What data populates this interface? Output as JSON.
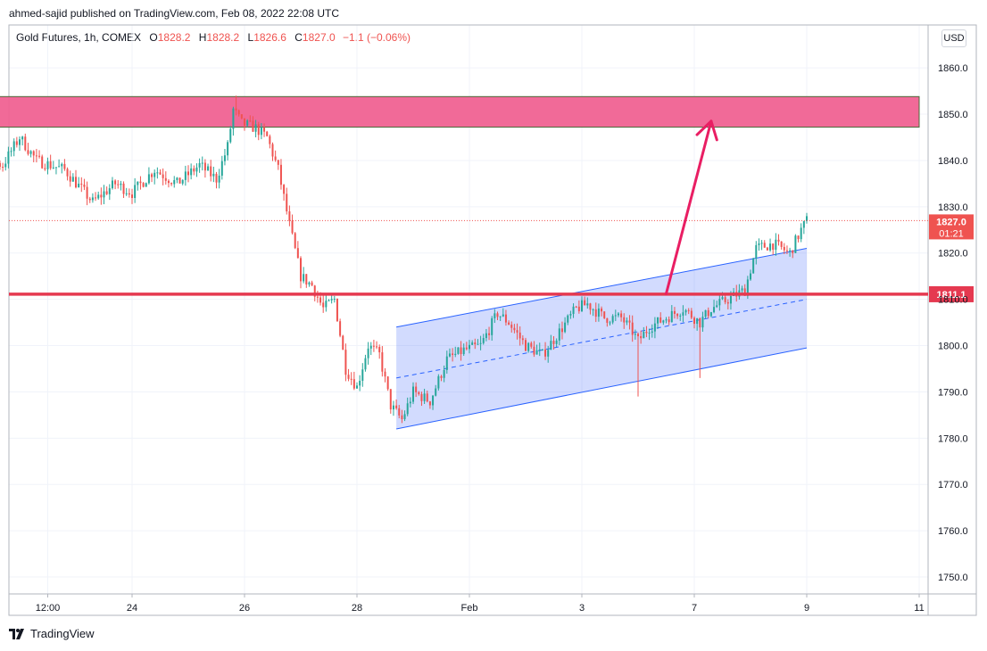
{
  "header": {
    "publisher": "ahmed-sajid published on TradingView.com, Feb 08, 2022 22:08 UTC"
  },
  "legend": {
    "symbol": "Gold Futures, 1h, COMEX",
    "o_label": "O",
    "o_value": "1828.2",
    "h_label": "H",
    "h_value": "1828.2",
    "l_label": "L",
    "l_value": "1826.6",
    "c_label": "C",
    "c_value": "1827.0",
    "change": "−1.1 (−0.06%)"
  },
  "currency_button": "USD",
  "footer": {
    "brand": "TradingView",
    "logo_icon": "tradingview-logo-icon"
  },
  "colors": {
    "up": "#26a69a",
    "down": "#ef5350",
    "zone": "#f06292",
    "support_line": "#e53950",
    "channel": "#2962ff",
    "arrow": "#e91e63"
  },
  "chart_data": {
    "type": "candlestick",
    "instrument": "Gold Futures",
    "ylim": [
      1743,
      1866
    ],
    "y_ticks": [
      1750,
      1760,
      1770,
      1780,
      1790,
      1800,
      1810,
      1820,
      1830,
      1840,
      1850,
      1860
    ],
    "x_range": [
      -3.3,
      19.5
    ],
    "x_ticks": [
      {
        "x": -1.5,
        "label": "12:00"
      },
      {
        "x": 0,
        "label": "24"
      },
      {
        "x": 2,
        "label": "26"
      },
      {
        "x": 4,
        "label": "28"
      },
      {
        "x": 6,
        "label": "Feb"
      },
      {
        "x": 8,
        "label": "3"
      },
      {
        "x": 10,
        "label": "7"
      },
      {
        "x": 12,
        "label": "9"
      },
      {
        "x": 14,
        "label": "11"
      }
    ],
    "price_path": [
      [
        -3.3,
        1843
      ],
      [
        -2.8,
        1841
      ],
      [
        -2.3,
        1839
      ],
      [
        -2.0,
        1845
      ],
      [
        -1.7,
        1840
      ],
      [
        -1.2,
        1838
      ],
      [
        -0.7,
        1831
      ],
      [
        -0.3,
        1835
      ],
      [
        0.0,
        1833
      ],
      [
        0.4,
        1838
      ],
      [
        0.8,
        1835
      ],
      [
        1.2,
        1839
      ],
      [
        1.5,
        1836
      ],
      [
        1.7,
        1843
      ],
      [
        1.8,
        1851
      ],
      [
        1.95,
        1848
      ],
      [
        2.2,
        1847
      ],
      [
        2.4,
        1845
      ],
      [
        2.6,
        1838
      ],
      [
        2.8,
        1826
      ],
      [
        3.0,
        1815
      ],
      [
        3.2,
        1813
      ],
      [
        3.4,
        1808
      ],
      [
        3.6,
        1810
      ],
      [
        3.8,
        1795
      ],
      [
        4.0,
        1791
      ],
      [
        4.2,
        1800
      ],
      [
        4.4,
        1798
      ],
      [
        4.6,
        1787
      ],
      [
        4.8,
        1784
      ],
      [
        5.0,
        1790
      ],
      [
        5.3,
        1788
      ],
      [
        5.6,
        1797
      ],
      [
        5.9,
        1799
      ],
      [
        6.2,
        1800
      ],
      [
        6.5,
        1807
      ],
      [
        6.7,
        1805
      ],
      [
        7.0,
        1800
      ],
      [
        7.3,
        1798
      ],
      [
        7.6,
        1803
      ],
      [
        7.9,
        1808
      ],
      [
        8.1,
        1809
      ],
      [
        8.4,
        1806
      ],
      [
        8.7,
        1806
      ],
      [
        8.9,
        1803
      ],
      [
        9.0,
        1801
      ],
      [
        9.2,
        1804
      ],
      [
        9.5,
        1806
      ],
      [
        9.8,
        1808
      ],
      [
        10.0,
        1806
      ],
      [
        10.1,
        1805
      ],
      [
        10.3,
        1808
      ],
      [
        10.6,
        1810
      ],
      [
        10.9,
        1812
      ],
      [
        11.1,
        1821
      ],
      [
        11.4,
        1822
      ],
      [
        11.7,
        1820
      ],
      [
        11.9,
        1825
      ],
      [
        12.0,
        1827
      ]
    ],
    "spike_lows": [
      [
        9.0,
        1789
      ],
      [
        10.1,
        1793
      ]
    ],
    "spike_highs": [
      [
        1.85,
        1854
      ],
      [
        2.35,
        1848
      ]
    ],
    "resistance_zone": {
      "x": [
        -3.0,
        14.0
      ],
      "y": [
        1847.2,
        1853.8
      ]
    },
    "support_line": {
      "y": 1811.1,
      "label": "1811.1"
    },
    "current_price": {
      "y": 1827.0,
      "label": "1827.0",
      "countdown": "01:21"
    },
    "channel": {
      "x": [
        4.7,
        12.0
      ],
      "upper": [
        1804,
        1821
      ],
      "middle": [
        1793,
        1810
      ],
      "lower": [
        1782,
        1799.5
      ]
    },
    "arrow": {
      "from": [
        9.5,
        1811.2
      ],
      "to": [
        10.3,
        1848.5
      ]
    }
  }
}
